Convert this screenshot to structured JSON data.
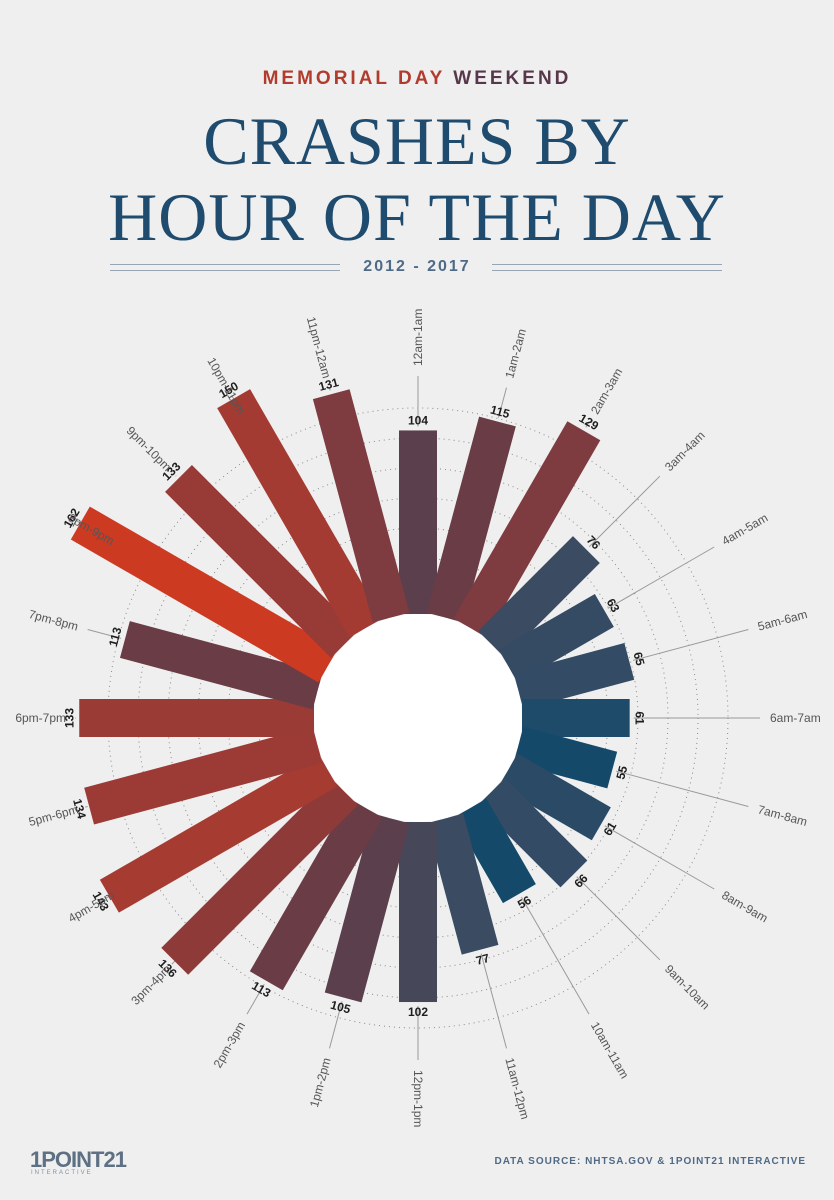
{
  "header": {
    "kicker_part1": "MEMORIAL DAY",
    "kicker_part2": "WEEKEND",
    "title_line1": "CRASHES BY",
    "title_line2": "HOUR OF THE DAY",
    "years": "2012 - 2017"
  },
  "chart_data": {
    "type": "bar",
    "subtype": "radial",
    "categories": [
      "12am-1am",
      "1am-2am",
      "2am-3am",
      "3am-4am",
      "4am-5am",
      "5am-6am",
      "6am-7am",
      "7am-8am",
      "8am-9am",
      "9am-10am",
      "10am-11am",
      "11am-12pm",
      "12pm-1pm",
      "1pm-2pm",
      "2pm-3pm",
      "3pm-4pm",
      "4pm-5pm",
      "5pm-6pm",
      "6pm-7pm",
      "7pm-8pm",
      "8pm-9pm",
      "9pm-10pm",
      "10pm-11pm",
      "11pm-12am"
    ],
    "values": [
      104,
      115,
      129,
      76,
      63,
      65,
      61,
      55,
      61,
      66,
      56,
      77,
      102,
      105,
      113,
      136,
      143,
      134,
      133,
      113,
      162,
      133,
      150,
      131
    ],
    "colors": [
      "#5b3f4d",
      "#6a3c46",
      "#7e3c40",
      "#3a4b62",
      "#354b63",
      "#344b65",
      "#1e4b6a",
      "#14496a",
      "#2a4a66",
      "#344b65",
      "#14496a",
      "#3a4b62",
      "#47475a",
      "#5b3f4d",
      "#6a3c46",
      "#8e3a38",
      "#a63b32",
      "#9c3b36",
      "#9a3b36",
      "#6a3c46",
      "#cc3a22",
      "#983b37",
      "#a43b33",
      "#7e3c40"
    ],
    "grid": true
  },
  "footer": {
    "logo_main": "1POINT21",
    "logo_sub": "INTERACTIVE",
    "source": "DATA SOURCE: NHTSA.GOV & 1POINT21 INTERACTIVE"
  }
}
